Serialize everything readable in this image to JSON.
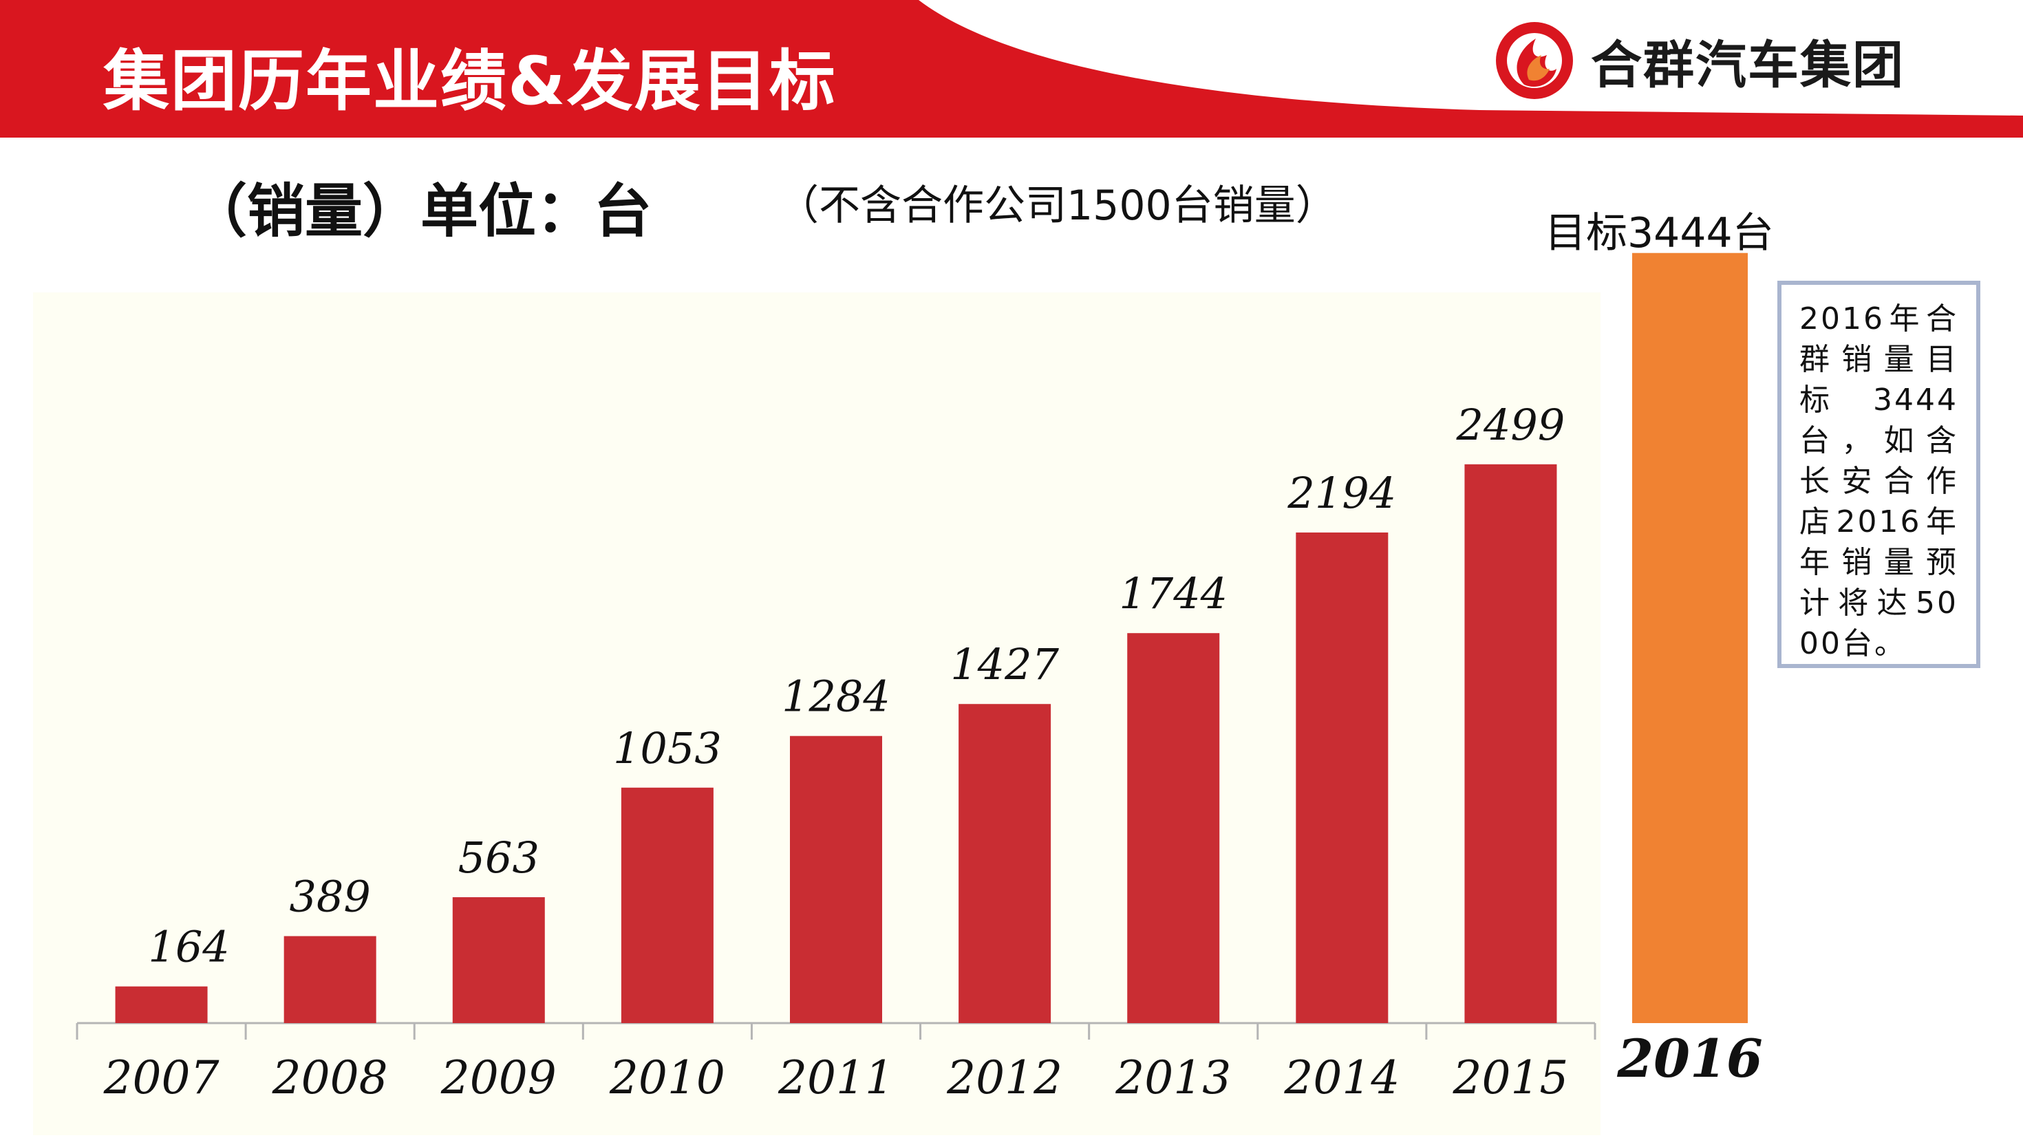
{
  "header": {
    "title": "集团历年业绩&发展目标",
    "brand_name": "合群汽车集团",
    "logo_icon": "flame-circle-icon",
    "accent_color": "#d9161f"
  },
  "subtitle": {
    "unit": "（销量）单位：台",
    "note": "（不含合作公司1500台销量）",
    "target": "目标3444台"
  },
  "note_box": {
    "text": "2016年合群销量目标3444台，如含长安合作店2016年年销量预计将达5000台。"
  },
  "chart_data": {
    "type": "bar",
    "categories": [
      "2007",
      "2008",
      "2009",
      "2010",
      "2011",
      "2012",
      "2013",
      "2014",
      "2015"
    ],
    "values": [
      164,
      389,
      563,
      1053,
      1284,
      1427,
      1744,
      2194,
      2499
    ],
    "bar_color": "#c92d33",
    "target": {
      "category": "2016",
      "value": 3444,
      "color": "#f08232"
    },
    "ylim": [
      0,
      3600
    ],
    "grid": false,
    "data_labels": true
  }
}
